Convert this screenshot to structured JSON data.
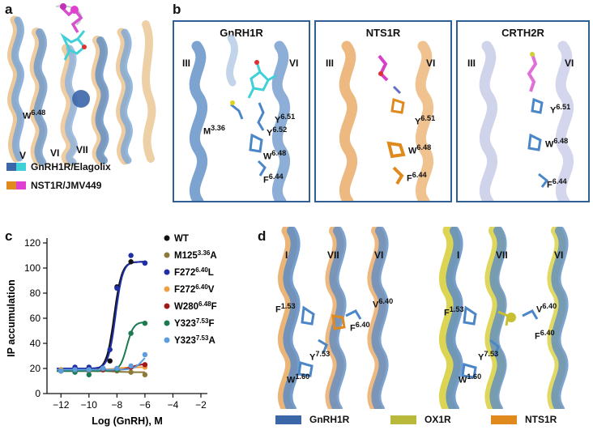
{
  "panels": {
    "a": {
      "label": "a",
      "residue": {
        "main": "W",
        "sup": "6.48"
      },
      "helices": [
        "V",
        "VI",
        "VII"
      ],
      "legend": [
        {
          "text": "GnRH1R/Elagolix",
          "colors": [
            "#3b66a8",
            "#40d0d8"
          ]
        },
        {
          "text": "NST1R/JMV449",
          "colors": [
            "#e08a1e",
            "#e040d0"
          ]
        }
      ]
    },
    "b": {
      "label": "b",
      "boxes": [
        {
          "title": "GnRH1R",
          "helix_left": "III",
          "helix_right": "VI",
          "residues": [
            {
              "main": "Y",
              "sup": "6.51"
            },
            {
              "main": "Y",
              "sup": "6.52"
            },
            {
              "main": "M",
              "sup": "3.36"
            },
            {
              "main": "W",
              "sup": "6.48"
            },
            {
              "main": "F",
              "sup": "6.44"
            }
          ]
        },
        {
          "title": "NTS1R",
          "helix_left": "III",
          "helix_right": "VI",
          "residues": [
            {
              "main": "Y",
              "sup": "6.51"
            },
            {
              "main": "W",
              "sup": "6.48"
            },
            {
              "main": "F",
              "sup": "6.44"
            }
          ]
        },
        {
          "title": "CRTH2R",
          "helix_left": "III",
          "helix_right": "VI",
          "residues": [
            {
              "main": "Y",
              "sup": "6.51"
            },
            {
              "main": "W",
              "sup": "6.48"
            },
            {
              "main": "F",
              "sup": "6.44"
            }
          ]
        }
      ]
    },
    "c": {
      "label": "c"
    },
    "d": {
      "label": "d",
      "left": {
        "helices": [
          "I",
          "VII",
          "VI"
        ],
        "residues": [
          {
            "main": "F",
            "sup": "1.53"
          },
          {
            "main": "V",
            "sup": "6.40"
          },
          {
            "main": "F",
            "sup": "6.40"
          },
          {
            "main": "Y",
            "sup": "7.53"
          },
          {
            "main": "W",
            "sup": "1.60"
          }
        ]
      },
      "right": {
        "helices": [
          "I",
          "VII",
          "VI"
        ],
        "residues": [
          {
            "main": "F",
            "sup": "1.53"
          },
          {
            "main": "V",
            "sup": "6.40"
          },
          {
            "main": "F",
            "sup": "6.40"
          },
          {
            "main": "Y",
            "sup": "7.53"
          },
          {
            "main": "W",
            "sup": "1.60"
          }
        ]
      },
      "legend": [
        {
          "text": "GnRH1R",
          "color": "#3b66a8"
        },
        {
          "text": "OX1R",
          "color": "#b8b83a"
        },
        {
          "text": "NTS1R",
          "color": "#e08a1e"
        }
      ]
    }
  },
  "chart_data": {
    "type": "scatter",
    "xlabel": "Log (GnRH), M",
    "ylabel": "IP accumulation",
    "xlim": [
      -13,
      -2
    ],
    "ylim": [
      0,
      120
    ],
    "xticks": [
      -12,
      -10,
      -8,
      -6,
      -4,
      -2
    ],
    "yticks": [
      0,
      20,
      40,
      60,
      80,
      100,
      120
    ],
    "grid": false,
    "legend_position": "right",
    "series": [
      {
        "name": "WT",
        "sup": "",
        "suffix": "",
        "color": "#111111",
        "x": [
          -12,
          -11,
          -10,
          -9,
          -8.5,
          -8,
          -7,
          -6
        ],
        "y": [
          19,
          19,
          20,
          20,
          26,
          85,
          105,
          104
        ],
        "fit": {
          "bottom": 19,
          "top": 105,
          "ec50": -8.2,
          "hill": 1.6
        }
      },
      {
        "name": "M125",
        "sup": "3.36",
        "suffix": "A",
        "color": "#8b7a3a",
        "x": [
          -12,
          -11,
          -10,
          -9,
          -8,
          -7,
          -6
        ],
        "y": [
          18,
          18,
          18,
          19,
          18,
          17,
          15
        ],
        "fit": {
          "bottom": 18,
          "top": 17,
          "ec50": -8,
          "hill": 1
        }
      },
      {
        "name": "F272",
        "sup": "6.40",
        "suffix": "L",
        "color": "#1f2fa8",
        "x": [
          -12,
          -11,
          -10,
          -9,
          -8.5,
          -8,
          -7,
          -6
        ],
        "y": [
          19,
          21,
          21,
          20,
          35,
          84,
          110,
          104
        ],
        "fit": {
          "bottom": 20,
          "top": 105,
          "ec50": -8.1,
          "hill": 1.7
        }
      },
      {
        "name": "F272",
        "sup": "6.40",
        "suffix": "V",
        "color": "#f0a040",
        "x": [
          -12,
          -11,
          -10,
          -9,
          -8,
          -7,
          -6
        ],
        "y": [
          19,
          19,
          19,
          20,
          20,
          21,
          21
        ],
        "fit": {
          "bottom": 19,
          "top": 21,
          "ec50": -8,
          "hill": 1
        }
      },
      {
        "name": "W280",
        "sup": "6.48",
        "suffix": "F",
        "color": "#a01818",
        "x": [
          -12,
          -11,
          -10,
          -9,
          -8,
          -7,
          -6
        ],
        "y": [
          18,
          19,
          19,
          19,
          20,
          21,
          23
        ],
        "fit": {
          "bottom": 18,
          "top": 24,
          "ec50": -7,
          "hill": 1
        }
      },
      {
        "name": "Y323",
        "sup": "7.53",
        "suffix": "F",
        "color": "#1a7a50",
        "x": [
          -12,
          -11,
          -10,
          -9,
          -8,
          -7,
          -6
        ],
        "y": [
          18,
          17,
          15,
          20,
          19,
          48,
          56
        ],
        "fit": {
          "bottom": 18,
          "top": 57,
          "ec50": -7.3,
          "hill": 1.8
        }
      },
      {
        "name": "Y323",
        "sup": "7.53",
        "suffix": "A",
        "color": "#5a9ee0",
        "x": [
          -12,
          -11,
          -10,
          -9,
          -8,
          -7,
          -6
        ],
        "y": [
          18,
          19,
          19,
          20,
          20,
          22,
          31
        ],
        "fit": {
          "bottom": 19,
          "top": 33,
          "ec50": -6.2,
          "hill": 1.5
        }
      }
    ]
  }
}
